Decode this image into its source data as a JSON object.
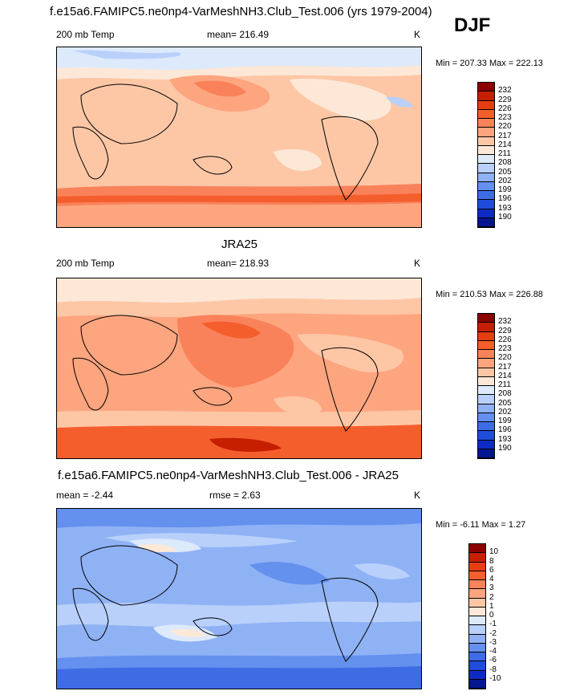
{
  "chart_data": [
    {
      "type": "heatmap",
      "title": "f.e15a6.FAMIPC5.ne0np4-VarMeshNH3.Club_Test.006 (yrs 1979-2004)",
      "season": "DJF",
      "left_label": "200 mb Temp",
      "center_label": "mean= 216.49",
      "units": "K",
      "minmax": "Min = 207.33 Max = 222.13",
      "colorbar_levels": [
        "232",
        "229",
        "226",
        "223",
        "220",
        "217",
        "214",
        "211",
        "208",
        "205",
        "202",
        "199",
        "196",
        "193",
        "190"
      ],
      "colorbar_colors": [
        "#8b0000",
        "#c51f00",
        "#e63d14",
        "#f45e2d",
        "#f9825a",
        "#fda57f",
        "#fdc7a6",
        "#fde8d8",
        "#ddeafc",
        "#b8d0fa",
        "#8fb2f5",
        "#6490ee",
        "#3d6ce4",
        "#1f4cd9",
        "#0d2bc4",
        "#04168f"
      ]
    },
    {
      "type": "heatmap",
      "title": "JRA25",
      "left_label": "200 mb Temp",
      "center_label": "mean= 218.93",
      "units": "K",
      "minmax": "Min = 210.53 Max = 226.88",
      "colorbar_levels": [
        "232",
        "229",
        "226",
        "223",
        "220",
        "217",
        "214",
        "211",
        "208",
        "205",
        "202",
        "199",
        "196",
        "193",
        "190"
      ],
      "colorbar_colors": [
        "#8b0000",
        "#c51f00",
        "#e63d14",
        "#f45e2d",
        "#f9825a",
        "#fda57f",
        "#fdc7a6",
        "#fde8d8",
        "#ddeafc",
        "#b8d0fa",
        "#8fb2f5",
        "#6490ee",
        "#3d6ce4",
        "#1f4cd9",
        "#0d2bc4",
        "#04168f"
      ]
    },
    {
      "type": "heatmap",
      "title": "f.e15a6.FAMIPC5.ne0np4-VarMeshNH3.Club_Test.006 - JRA25",
      "left_label": "mean =  -2.44",
      "center_label": "rmse =   2.63",
      "units": "K",
      "minmax": "Min =  -6.11 Max =   1.27",
      "colorbar_levels": [
        "10",
        "8",
        "6",
        "4",
        "3",
        "2",
        "1",
        "0",
        "-1",
        "-2",
        "-3",
        "-4",
        "-6",
        "-8",
        "-10"
      ],
      "colorbar_colors": [
        "#8b0000",
        "#c51f00",
        "#e63d14",
        "#f45e2d",
        "#f9825a",
        "#fda57f",
        "#fdc7a6",
        "#fde8d8",
        "#ddeafc",
        "#b8d0fa",
        "#8fb2f5",
        "#6490ee",
        "#3d6ce4",
        "#1f4cd9",
        "#0d2bc4",
        "#04168f"
      ]
    }
  ]
}
